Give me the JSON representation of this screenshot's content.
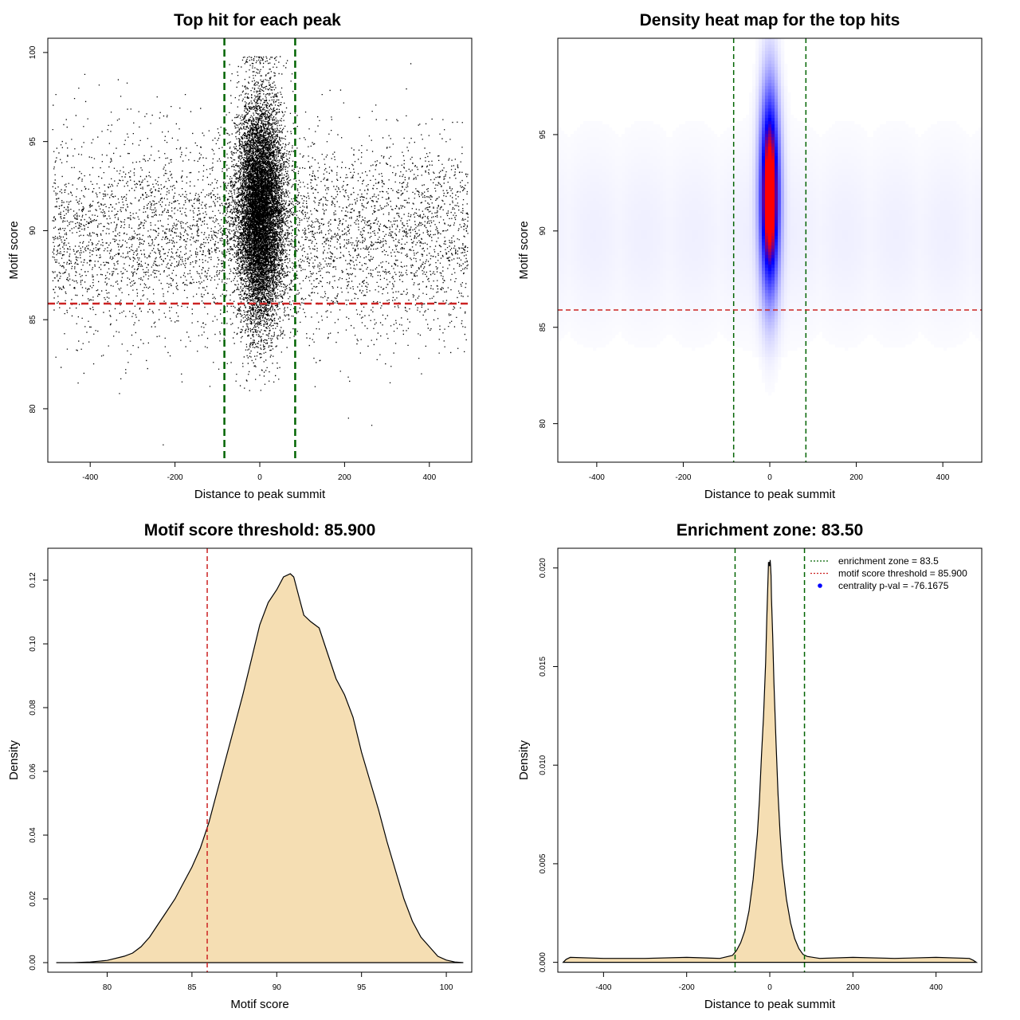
{
  "chart_data": [
    {
      "type": "scatter",
      "title": "Top hit for each peak",
      "xlabel": "Distance to peak summit",
      "ylabel": "Motif score",
      "xlim": [
        -500,
        500
      ],
      "ylim": [
        77,
        100.8
      ],
      "xticks": [
        "-400",
        "-200",
        "0",
        "200",
        "400"
      ],
      "yticks": [
        "80",
        "85",
        "90",
        "95",
        "100"
      ],
      "vlines": [
        -83.5,
        83.5
      ],
      "hline": 85.9,
      "point_color": "#000000",
      "vline_color": "#006400",
      "hline_color": "#cc2222",
      "distribution": {
        "background_x_range": [
          -490,
          490
        ],
        "background_score_mean": 89.8,
        "background_score_sd": 2.7,
        "central_x_sd": 27,
        "central_score_mean": 91.2,
        "central_score_sd": 3.1
      },
      "isolated_points": [
        {
          "x": -229,
          "y": 78.0
        },
        {
          "x": 208,
          "y": 79.5
        },
        {
          "x": 263,
          "y": 79.1
        },
        {
          "x": 355,
          "y": 99.4
        },
        {
          "x": -414,
          "y": 98.8
        },
        {
          "x": -380,
          "y": 98.2
        },
        {
          "x": 47,
          "y": 99.8
        },
        {
          "x": -335,
          "y": 98.5
        }
      ]
    },
    {
      "type": "heatmap",
      "title": "Density heat map for the top hits",
      "xlabel": "Distance to peak summit",
      "ylabel": "Motif score",
      "xlim": [
        -490,
        490
      ],
      "ylim": [
        78,
        100
      ],
      "xticks": [
        "-400",
        "-200",
        "0",
        "200",
        "400"
      ],
      "yticks": [
        "80",
        "85",
        "90",
        "95"
      ],
      "vlines": [
        -83.5,
        83.5
      ],
      "hline": 85.9,
      "colors": [
        "#ffffff",
        "#0000ff",
        "#ff0000"
      ],
      "peak": {
        "x": 0,
        "y": 91.8
      }
    },
    {
      "type": "area",
      "title": "Motif score threshold: 85.900",
      "xlabel": "Motif score",
      "ylabel": "Density",
      "xlim": [
        76.5,
        101.5
      ],
      "ylim": [
        -0.003,
        0.13
      ],
      "xticks": [
        "80",
        "85",
        "90",
        "95",
        "100"
      ],
      "yticks": [
        "0.00",
        "0.02",
        "0.04",
        "0.06",
        "0.08",
        "0.10",
        "0.12"
      ],
      "vline": 85.9,
      "fill": "#f5deb3",
      "x": [
        77.0,
        78.0,
        79.0,
        80.0,
        81.0,
        81.5,
        82.0,
        82.5,
        83.0,
        83.5,
        84.0,
        84.5,
        85.0,
        85.5,
        86.0,
        86.5,
        87.0,
        87.5,
        88.0,
        88.5,
        89.0,
        89.5,
        90.0,
        90.4,
        90.8,
        91.0,
        91.3,
        91.6,
        92.0,
        92.5,
        93.0,
        93.5,
        94.0,
        94.5,
        95.0,
        95.5,
        96.0,
        96.5,
        97.0,
        97.5,
        98.0,
        98.5,
        99.0,
        99.5,
        100.0,
        100.5,
        101.0
      ],
      "y": [
        0.0,
        0.0,
        0.0002,
        0.0007,
        0.002,
        0.003,
        0.005,
        0.008,
        0.012,
        0.016,
        0.02,
        0.025,
        0.03,
        0.036,
        0.044,
        0.054,
        0.064,
        0.074,
        0.084,
        0.095,
        0.106,
        0.113,
        0.117,
        0.121,
        0.122,
        0.121,
        0.115,
        0.109,
        0.107,
        0.105,
        0.097,
        0.089,
        0.084,
        0.077,
        0.066,
        0.057,
        0.048,
        0.038,
        0.029,
        0.02,
        0.013,
        0.008,
        0.005,
        0.002,
        0.0008,
        0.0002,
        0.0
      ]
    },
    {
      "type": "area",
      "title": "Enrichment zone: 83.50",
      "xlabel": "Distance to peak summit",
      "ylabel": "Density",
      "xlim": [
        -510,
        510
      ],
      "ylim": [
        -0.0005,
        0.021
      ],
      "xticks": [
        "-400",
        "-200",
        "0",
        "200",
        "400"
      ],
      "yticks": [
        "0.000",
        "0.005",
        "0.010",
        "0.015",
        "0.020"
      ],
      "vlines": [
        -83.5,
        83.5
      ],
      "fill": "#f5deb3",
      "x": [
        -497,
        -490,
        -480,
        -400,
        -300,
        -200,
        -120,
        -90,
        -80,
        -70,
        -60,
        -50,
        -40,
        -30,
        -25,
        -20,
        -15,
        -10,
        -7,
        -4,
        -3,
        -2,
        -1,
        0,
        1,
        2,
        3,
        4,
        7,
        10,
        15,
        20,
        25,
        30,
        40,
        50,
        60,
        70,
        80,
        90,
        120,
        200,
        300,
        400,
        480,
        490,
        497
      ],
      "y": [
        0.0,
        0.00015,
        0.00025,
        0.0002,
        0.0002,
        0.00025,
        0.0002,
        0.00035,
        0.0006,
        0.001,
        0.0016,
        0.0026,
        0.0042,
        0.0065,
        0.0082,
        0.0105,
        0.0125,
        0.0152,
        0.0175,
        0.0196,
        0.0203,
        0.0201,
        0.0203,
        0.0201,
        0.0204,
        0.0201,
        0.0196,
        0.0185,
        0.0165,
        0.0142,
        0.0112,
        0.0085,
        0.0065,
        0.005,
        0.0032,
        0.002,
        0.0012,
        0.0007,
        0.0004,
        0.0003,
        0.0002,
        0.00025,
        0.0002,
        0.00025,
        0.0002,
        0.0001,
        0.0
      ],
      "legend": [
        {
          "label": "enrichment zone = 83.5",
          "color": "#006400",
          "style": "dotted-line"
        },
        {
          "label": "motif score threshold = 85.900",
          "color": "#cc2222",
          "style": "dotted-line"
        },
        {
          "label": "centrality p-val = -76.1675",
          "color": "#0000ff",
          "style": "point"
        }
      ],
      "legend_position": "top-right"
    }
  ]
}
